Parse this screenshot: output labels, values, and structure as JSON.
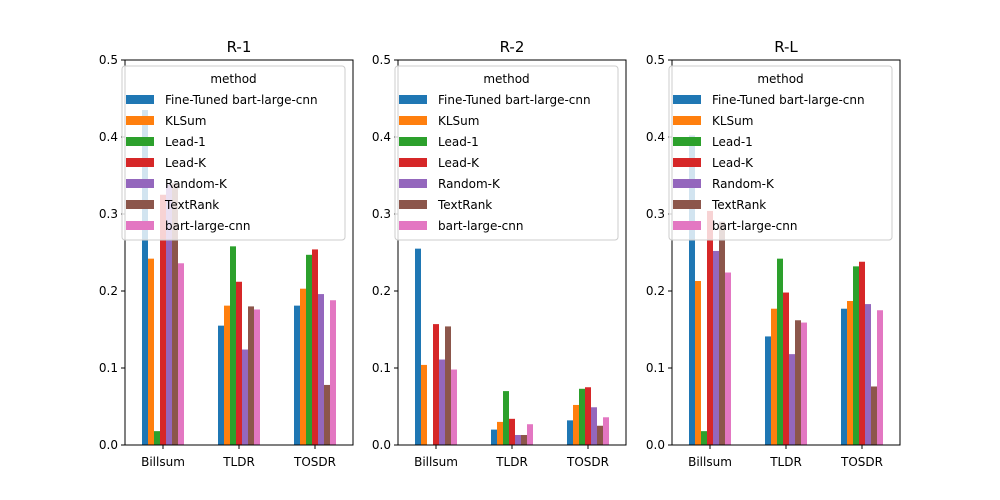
{
  "chart_data": [
    {
      "type": "bar",
      "title": "R-1",
      "categories": [
        "Billsum",
        "TLDR",
        "TOSDR"
      ],
      "ylim": [
        0,
        0.5
      ],
      "yticks": [
        "0.0",
        "0.1",
        "0.2",
        "0.3",
        "0.4",
        "0.5"
      ],
      "grid": false,
      "legend": {
        "title": "method",
        "placement": "top-left"
      },
      "series": [
        {
          "name": "Fine-Tuned bart-large-cnn",
          "color": "#1f77b4",
          "values": [
            0.435,
            0.155,
            0.181
          ]
        },
        {
          "name": "KLSum",
          "color": "#ff7f0e",
          "values": [
            0.242,
            0.181,
            0.203
          ]
        },
        {
          "name": "Lead-1",
          "color": "#2ca02c",
          "values": [
            0.018,
            0.258,
            0.247
          ]
        },
        {
          "name": "Lead-K",
          "color": "#d62728",
          "values": [
            0.325,
            0.212,
            0.254
          ]
        },
        {
          "name": "Random-K",
          "color": "#9467bd",
          "values": [
            0.338,
            0.124,
            0.196
          ]
        },
        {
          "name": "TextRank",
          "color": "#8c564b",
          "values": [
            0.34,
            0.18,
            0.078
          ]
        },
        {
          "name": "bart-large-cnn",
          "color": "#e377c2",
          "values": [
            0.236,
            0.176,
            0.188
          ]
        }
      ]
    },
    {
      "type": "bar",
      "title": "R-2",
      "categories": [
        "Billsum",
        "TLDR",
        "TOSDR"
      ],
      "ylim": [
        0,
        0.5
      ],
      "yticks": [
        "0.0",
        "0.1",
        "0.2",
        "0.3",
        "0.4",
        "0.5"
      ],
      "grid": false,
      "legend": {
        "title": "method",
        "placement": "top-left"
      },
      "series": [
        {
          "name": "Fine-Tuned bart-large-cnn",
          "color": "#1f77b4",
          "values": [
            0.255,
            0.02,
            0.032
          ]
        },
        {
          "name": "KLSum",
          "color": "#ff7f0e",
          "values": [
            0.104,
            0.03,
            0.052
          ]
        },
        {
          "name": "Lead-1",
          "color": "#2ca02c",
          "values": [
            0.0,
            0.07,
            0.073
          ]
        },
        {
          "name": "Lead-K",
          "color": "#d62728",
          "values": [
            0.157,
            0.034,
            0.075
          ]
        },
        {
          "name": "Random-K",
          "color": "#9467bd",
          "values": [
            0.111,
            0.013,
            0.049
          ]
        },
        {
          "name": "TextRank",
          "color": "#8c564b",
          "values": [
            0.154,
            0.013,
            0.025
          ]
        },
        {
          "name": "bart-large-cnn",
          "color": "#e377c2",
          "values": [
            0.098,
            0.027,
            0.036
          ]
        }
      ]
    },
    {
      "type": "bar",
      "title": "R-L",
      "categories": [
        "Billsum",
        "TLDR",
        "TOSDR"
      ],
      "ylim": [
        0,
        0.5
      ],
      "yticks": [
        "0.0",
        "0.1",
        "0.2",
        "0.3",
        "0.4",
        "0.5"
      ],
      "grid": false,
      "legend": {
        "title": "method",
        "placement": "top-left"
      },
      "series": [
        {
          "name": "Fine-Tuned bart-large-cnn",
          "color": "#1f77b4",
          "values": [
            0.402,
            0.141,
            0.177
          ]
        },
        {
          "name": "KLSum",
          "color": "#ff7f0e",
          "values": [
            0.213,
            0.177,
            0.187
          ]
        },
        {
          "name": "Lead-1",
          "color": "#2ca02c",
          "values": [
            0.018,
            0.242,
            0.232
          ]
        },
        {
          "name": "Lead-K",
          "color": "#d62728",
          "values": [
            0.304,
            0.198,
            0.238
          ]
        },
        {
          "name": "Random-K",
          "color": "#9467bd",
          "values": [
            0.252,
            0.118,
            0.183
          ]
        },
        {
          "name": "TextRank",
          "color": "#8c564b",
          "values": [
            0.29,
            0.162,
            0.076
          ]
        },
        {
          "name": "bart-large-cnn",
          "color": "#e377c2",
          "values": [
            0.224,
            0.159,
            0.175
          ]
        }
      ]
    }
  ]
}
